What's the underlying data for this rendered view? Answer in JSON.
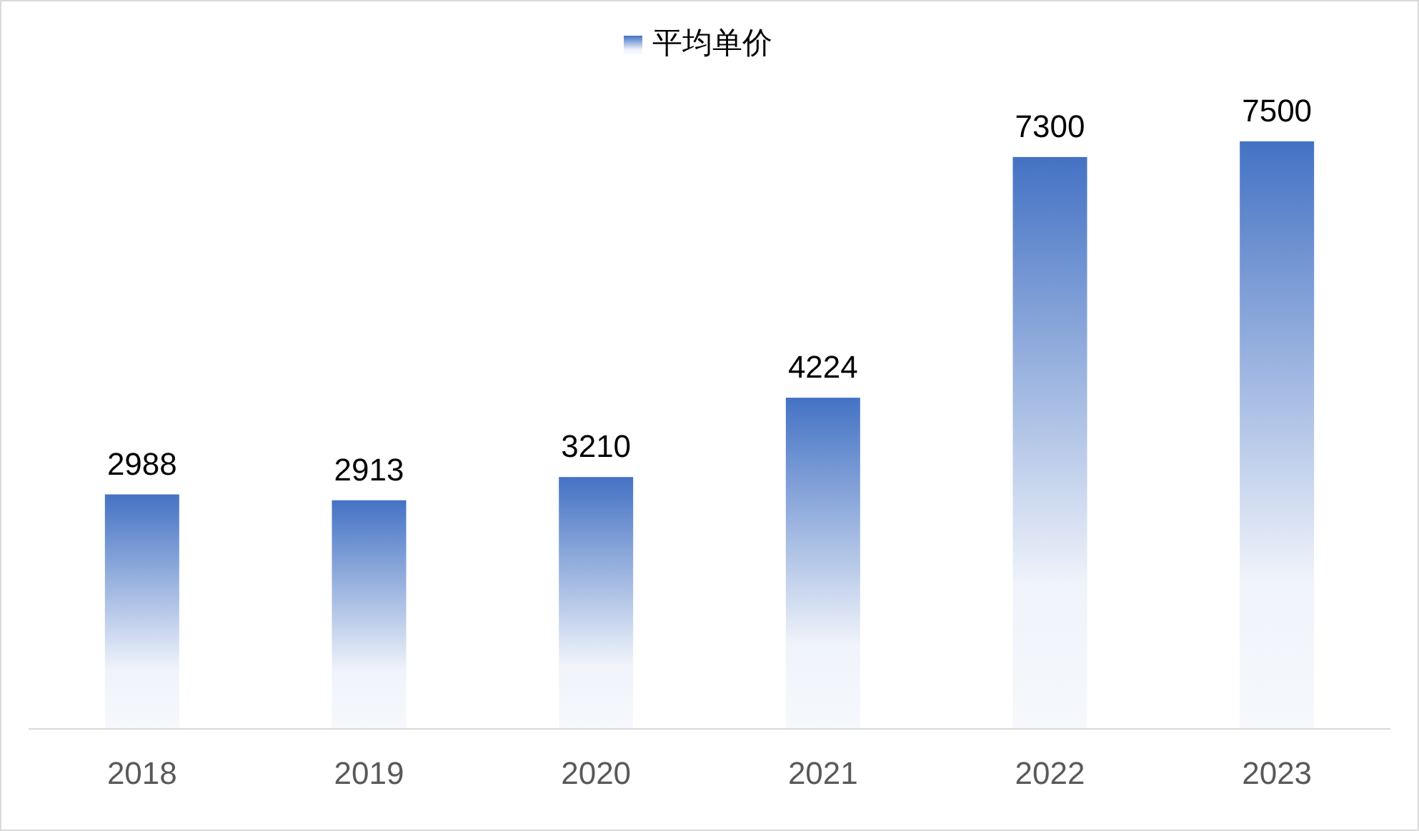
{
  "chart_data": {
    "type": "bar",
    "categories": [
      "2018",
      "2019",
      "2020",
      "2021",
      "2022",
      "2023"
    ],
    "series": [
      {
        "name": "平均单价",
        "color": "#4472c4",
        "values": [
          2988,
          2913,
          3210,
          4224,
          7300,
          7500
        ]
      }
    ],
    "data_labels": true,
    "legend": "top"
  }
}
